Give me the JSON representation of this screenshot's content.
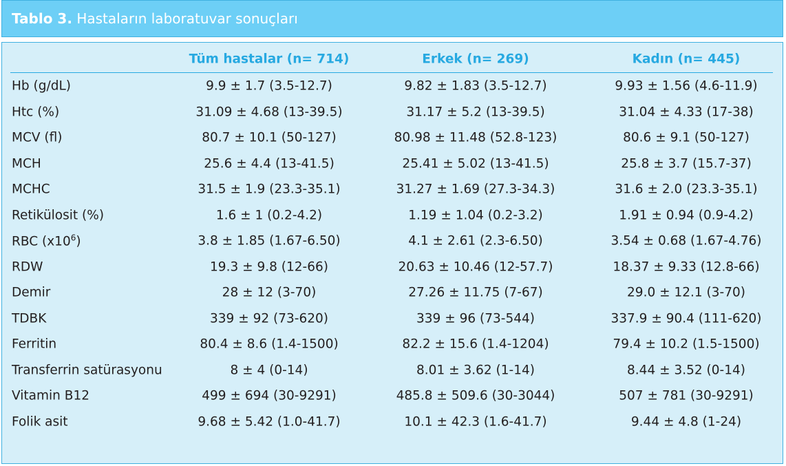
{
  "title": {
    "label": "Tablo 3.",
    "text": "Hastaların laboratuvar sonuçları"
  },
  "table": {
    "columns": [
      "Tüm hastalar (n= 714)",
      "Erkek (n= 269)",
      "Kadın (n= 445)"
    ],
    "rows": [
      {
        "label": "Hb (g/dL)",
        "values": [
          "9.9 ± 1.7 (3.5-12.7)",
          "9.82 ± 1.83 (3.5-12.7)",
          "9.93 ± 1.56 (4.6-11.9)"
        ]
      },
      {
        "label": "Htc (%)",
        "values": [
          "31.09 ± 4.68 (13-39.5)",
          "31.17 ± 5.2 (13-39.5)",
          "31.04 ± 4.33 (17-38)"
        ]
      },
      {
        "label": "MCV (fl)",
        "values": [
          "80.7 ± 10.1 (50-127)",
          "80.98 ± 11.48 (52.8-123)",
          "80.6 ± 9.1 (50-127)"
        ]
      },
      {
        "label": "MCH",
        "values": [
          "25.6 ± 4.4 (13-41.5)",
          "25.41 ± 5.02 (13-41.5)",
          "25.8 ± 3.7 (15.7-37)"
        ]
      },
      {
        "label": "MCHC",
        "values": [
          "31.5 ± 1.9 (23.3-35.1)",
          "31.27 ± 1.69 (27.3-34.3)",
          "31.6 ± 2.0 (23.3-35.1)"
        ]
      },
      {
        "label": "Retikülosit (%)",
        "values": [
          "1.6 ± 1 (0.2-4.2)",
          "1.19 ± 1.04 (0.2-3.2)",
          "1.91 ± 0.94 (0.9-4.2)"
        ]
      },
      {
        "label": "RBC (x10",
        "label_sup": "6",
        "label_end": ")",
        "values": [
          "3.8 ± 1.85 (1.67-6.50)",
          "4.1 ± 2.61 (2.3-6.50)",
          "3.54 ± 0.68 (1.67-4.76)"
        ]
      },
      {
        "label": "RDW",
        "values": [
          "19.3 ± 9.8 (12-66)",
          "20.63 ± 10.46 (12-57.7)",
          "18.37 ± 9.33 (12.8-66)"
        ]
      },
      {
        "label": "Demir",
        "values": [
          "28 ± 12 (3-70)",
          "27.26 ± 11.75 (7-67)",
          "29.0 ± 12.1 (3-70)"
        ]
      },
      {
        "label": "TDBK",
        "values": [
          "339 ± 92 (73-620)",
          "339 ± 96 (73-544)",
          "337.9 ± 90.4 (111-620)"
        ]
      },
      {
        "label": "Ferritin",
        "values": [
          "80.4 ± 8.6 (1.4-1500)",
          "82.2 ± 15.6 (1.4-1204)",
          "79.4 ± 10.2 (1.5-1500)"
        ]
      },
      {
        "label": "Transferrin satürasyonu",
        "values": [
          "8 ± 4 (0-14)",
          "8.01 ± 3.62 (1-14)",
          "8.44 ± 3.52 (0-14)"
        ]
      },
      {
        "label": "Vitamin B12",
        "values": [
          "499 ± 694 (30-9291)",
          "485.8 ± 509.6 (30-3044)",
          "507 ± 781 (30-9291)"
        ]
      },
      {
        "label": "Folik asit",
        "values": [
          "9.68 ± 5.42 (1.0-41.7)",
          "10.1 ± 42.3 (1.6-41.7)",
          "9.44 ± 4.8 (1-24)"
        ]
      }
    ]
  }
}
